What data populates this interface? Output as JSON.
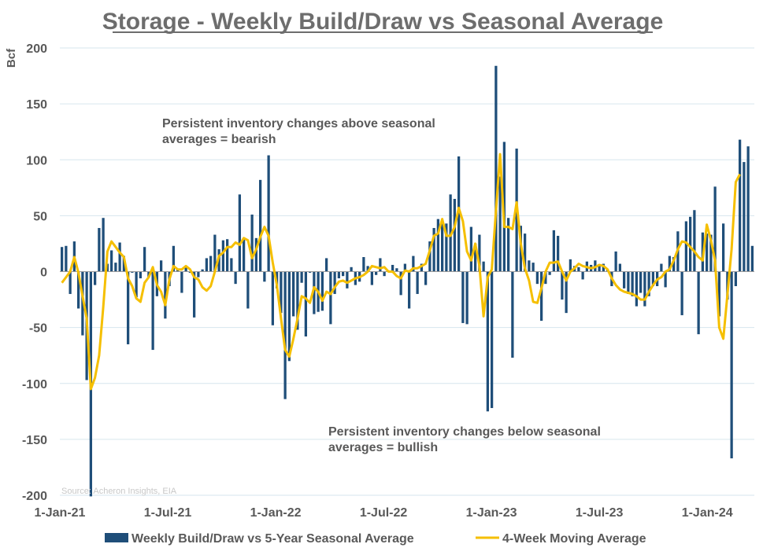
{
  "chart_data": {
    "type": "bar",
    "title": "Storage - Weekly Build/Draw vs Seasonal Average",
    "ylabel": "Bcf",
    "xlabel": "",
    "ylim": [
      -200,
      200
    ],
    "yticks": [
      200,
      150,
      100,
      50,
      0,
      -50,
      -100,
      -150,
      -200
    ],
    "xtick_labels": [
      "1-Jan-21",
      "1-Jul-21",
      "1-Jan-22",
      "1-Jul-22",
      "1-Jan-23",
      "1-Jul-23",
      "1-Jan-24"
    ],
    "grid": true,
    "legend_position": "bottom",
    "series": [
      {
        "name": "Weekly Build/Draw vs 5-Year Seasonal Average",
        "type": "bar",
        "color": "#1f4e79",
        "values": [
          22,
          23,
          -20,
          27,
          -33,
          -57,
          -97,
          -201,
          -12,
          39,
          48,
          7,
          19,
          8,
          26,
          14,
          -65,
          -1,
          -23,
          -6,
          22,
          -5,
          -70,
          -22,
          10,
          -42,
          -13,
          23,
          2,
          -19,
          5,
          -1,
          -41,
          -5,
          2,
          12,
          14,
          33,
          20,
          28,
          29,
          12,
          -11,
          69,
          30,
          -33,
          51,
          30,
          82,
          -9,
          104,
          -48,
          -15,
          -37,
          -114,
          -80,
          -40,
          -52,
          -10,
          -58,
          -1,
          -38,
          -36,
          -35,
          12,
          -47,
          -20,
          -6,
          -4,
          -15,
          4,
          -12,
          -9,
          13,
          5,
          -12,
          -3,
          12,
          -4,
          1,
          6,
          3,
          -21,
          7,
          -33,
          14,
          -20,
          7,
          -12,
          27,
          39,
          47,
          46,
          43,
          69,
          65,
          103,
          -46,
          -47,
          40,
          25,
          33,
          9,
          -125,
          -122,
          184,
          85,
          116,
          48,
          -77,
          110,
          41,
          34,
          10,
          8,
          -11,
          -44,
          -11,
          -3,
          37,
          32,
          -25,
          -37,
          11,
          5,
          4,
          -7,
          9,
          6,
          10,
          5,
          7,
          2,
          -13,
          18,
          7,
          -15,
          -20,
          -22,
          -31,
          -19,
          -31,
          -22,
          -13,
          -13,
          7,
          -14,
          14,
          13,
          36,
          -39,
          45,
          49,
          55,
          -56,
          35,
          34,
          33,
          76,
          -40,
          43,
          -25,
          -167,
          -13,
          118,
          98,
          112,
          23
        ]
      },
      {
        "name": "4-Week Moving Average",
        "type": "line",
        "color": "#f5bf00",
        "values": [
          -10,
          -5,
          0,
          13,
          -1,
          -22,
          -42,
          -105,
          -95,
          -75,
          -32,
          18,
          27,
          22,
          17,
          13,
          -6,
          -13,
          -24,
          -27,
          -10,
          -5,
          4,
          -12,
          -18,
          -30,
          -7,
          5,
          2,
          2,
          5,
          2,
          -5,
          -7,
          -14,
          -17,
          -13,
          0,
          14,
          17,
          22,
          22,
          26,
          24,
          30,
          28,
          12,
          20,
          31,
          40,
          32,
          8,
          -12,
          -42,
          -70,
          -76,
          -60,
          -42,
          -22,
          -24,
          -28,
          -14,
          -18,
          -26,
          -18,
          -20,
          -14,
          -9,
          -8,
          -10,
          -8,
          -6,
          -5,
          -3,
          0,
          5,
          4,
          3,
          4,
          0,
          0,
          -4,
          -6,
          1,
          0,
          3,
          3,
          5,
          7,
          19,
          32,
          34,
          47,
          32,
          32,
          40,
          57,
          45,
          18,
          10,
          25,
          5,
          -40,
          -5,
          2,
          55,
          105,
          40,
          40,
          38,
          62,
          25,
          3,
          -8,
          -27,
          -28,
          -15,
          0,
          8,
          8,
          9,
          0,
          -8,
          0,
          3,
          7,
          5,
          4,
          3,
          4,
          6,
          5,
          2,
          -6,
          -12,
          -16,
          -18,
          -19,
          -20,
          -22,
          -25,
          -25,
          -18,
          -12,
          -7,
          -5,
          0,
          2,
          10,
          20,
          27,
          26,
          22,
          18,
          13,
          10,
          42,
          28,
          10,
          -50,
          -60,
          -20,
          20,
          80,
          87
        ]
      }
    ],
    "annotations": [
      "Persistent inventory changes above seasonal",
      "averages = bearish",
      "Persistent inventory changes below seasonal",
      "averages = bullish"
    ],
    "source": "Source: Acheron Insights, EIA"
  }
}
